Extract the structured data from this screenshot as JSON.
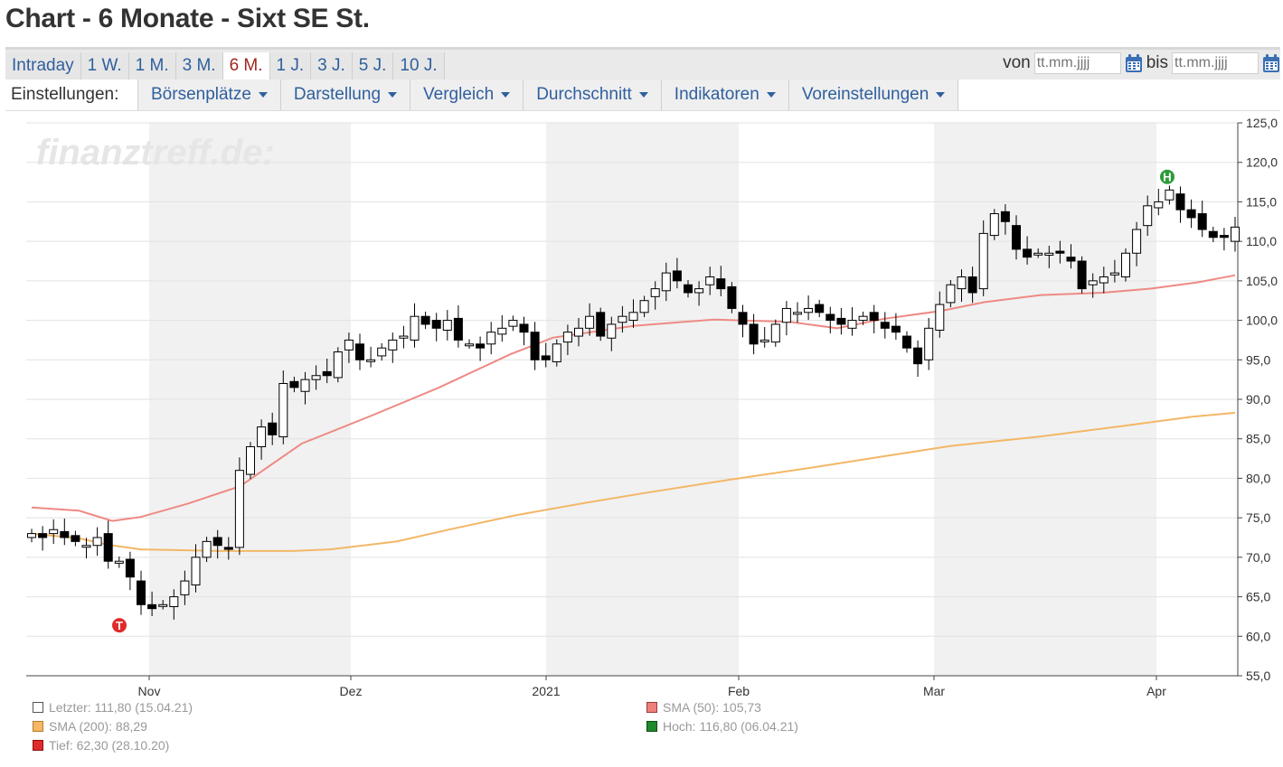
{
  "title": "Chart - 6 Monate - Sixt SE St.",
  "period_tabs": [
    "Intraday",
    "1 W.",
    "1 M.",
    "3 M.",
    "6 M.",
    "1 J.",
    "3 J.",
    "5 J.",
    "10 J."
  ],
  "active_period": "6 M.",
  "date_range": {
    "from_label": "von",
    "to_label": "bis",
    "from_placeholder": "tt.mm.jjjj",
    "to_placeholder": "tt.mm.jjjj"
  },
  "settings": {
    "label": "Einstellungen:",
    "menus": [
      "Börsenplätze",
      "Darstellung",
      "Vergleich",
      "Durchschnitt",
      "Indikatoren",
      "Voreinstellungen"
    ]
  },
  "watermark": "finanztreff.de:",
  "legend": {
    "last": "Letzter: 111,80 (15.04.21)",
    "sma50": "SMA (50): 105,73",
    "sma200": "SMA (200): 88,29",
    "high": "Hoch: 116,80 (06.04.21)",
    "low": "Tief: 62,30 (28.10.20)"
  },
  "colors": {
    "sma50": "#ee8a84",
    "sma200": "#f3b766",
    "high_marker": "#2e9a3a",
    "low_marker": "#e02b2b",
    "band": "#f1f1f1"
  },
  "chart_data": {
    "type": "candlestick",
    "title": "",
    "ylim": [
      55,
      125
    ],
    "y_ticks": [
      "125,0",
      "120,0",
      "115,0",
      "110,0",
      "105,0",
      "100,0",
      "95,0",
      "90,0",
      "85,0",
      "80,0",
      "75,0",
      "70,0",
      "65,0",
      "60,0",
      "55,0"
    ],
    "x_labels": [
      "Nov",
      "Dez",
      "2021",
      "Feb",
      "Mar",
      "Apr"
    ],
    "markers": {
      "high": {
        "label": "H",
        "value": 116.8,
        "date": "06.04.21"
      },
      "low": {
        "label": "T",
        "value": 62.3,
        "date": "28.10.20"
      }
    },
    "close_series": [
      73.0,
      72.5,
      73.5,
      72.5,
      72.0,
      71.5,
      72.5,
      69.5,
      69.5,
      67.5,
      64.0,
      63.5,
      64.0,
      65.0,
      67.0,
      70.0,
      72.0,
      71.5,
      71.0,
      81.0,
      84.0,
      86.5,
      85.5,
      92.0,
      91.5,
      92.5,
      93.0,
      93.0,
      96.0,
      97.5,
      95.0,
      95.0,
      96.5,
      97.5,
      98.0,
      100.5,
      99.5,
      99.0,
      100.0,
      97.5,
      97.0,
      96.5,
      98.5,
      99.0,
      100.0,
      98.5,
      95.0,
      95.0,
      97.0,
      98.5,
      99.0,
      100.5,
      98.0,
      99.5,
      100.5,
      101.0,
      102.5,
      104.0,
      106.0,
      105.0,
      103.5,
      104.0,
      105.5,
      104.0,
      101.5,
      99.5,
      97.0,
      97.5,
      99.5,
      101.5,
      101.0,
      101.5,
      101.0,
      100.0,
      99.5,
      100.0,
      100.5,
      100.0,
      99.0,
      98.5,
      96.5,
      94.5,
      99.0,
      102.0,
      104.5,
      105.5,
      103.5,
      111.0,
      113.5,
      112.5,
      109.0,
      108.0,
      108.5,
      108.5,
      108.5,
      107.5,
      104.0,
      105.0,
      105.5,
      106.0,
      108.5,
      111.5,
      114.5,
      115.0,
      116.5,
      114.0,
      113.0,
      111.5,
      110.5,
      110.5,
      111.8
    ],
    "sma50": [
      [
        0,
        76.3
      ],
      [
        10,
        75.9
      ],
      [
        17,
        74.6
      ],
      [
        23,
        75.1
      ],
      [
        33,
        76.8
      ],
      [
        44,
        79.0
      ],
      [
        57,
        84.4
      ],
      [
        72,
        88.0
      ],
      [
        86,
        91.5
      ],
      [
        101,
        95.7
      ],
      [
        110,
        97.8
      ],
      [
        127,
        99.3
      ],
      [
        144,
        100.1
      ],
      [
        160,
        99.8
      ],
      [
        170,
        99.0
      ],
      [
        180,
        100.2
      ],
      [
        192,
        101.2
      ],
      [
        201,
        102.3
      ],
      [
        213,
        103.2
      ],
      [
        226,
        103.5
      ],
      [
        236,
        104.0
      ],
      [
        246,
        104.8
      ],
      [
        254,
        105.7
      ]
    ],
    "sma200": [
      [
        0,
        73.0
      ],
      [
        10,
        72.4
      ],
      [
        16,
        71.6
      ],
      [
        23,
        71.0
      ],
      [
        40,
        70.8
      ],
      [
        55,
        70.8
      ],
      [
        63,
        71.0
      ],
      [
        77,
        72.0
      ],
      [
        88,
        73.5
      ],
      [
        102,
        75.3
      ],
      [
        117,
        76.9
      ],
      [
        130,
        78.2
      ],
      [
        147,
        79.8
      ],
      [
        164,
        81.3
      ],
      [
        179,
        82.7
      ],
      [
        194,
        84.1
      ],
      [
        213,
        85.3
      ],
      [
        230,
        86.6
      ],
      [
        245,
        87.8
      ],
      [
        254,
        88.3
      ]
    ]
  }
}
